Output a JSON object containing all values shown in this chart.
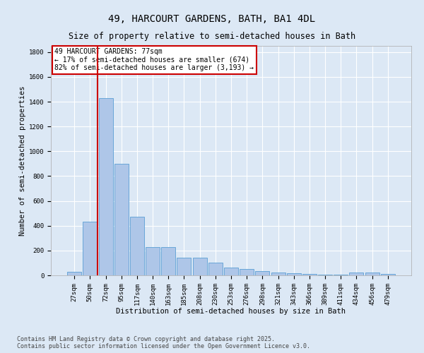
{
  "title": "49, HARCOURT GARDENS, BATH, BA1 4DL",
  "subtitle": "Size of property relative to semi-detached houses in Bath",
  "xlabel": "Distribution of semi-detached houses by size in Bath",
  "ylabel": "Number of semi-detached properties",
  "categories": [
    "27sqm",
    "50sqm",
    "72sqm",
    "95sqm",
    "117sqm",
    "140sqm",
    "163sqm",
    "185sqm",
    "208sqm",
    "230sqm",
    "253sqm",
    "276sqm",
    "298sqm",
    "321sqm",
    "343sqm",
    "366sqm",
    "389sqm",
    "411sqm",
    "434sqm",
    "456sqm",
    "479sqm"
  ],
  "values": [
    30,
    430,
    1430,
    900,
    470,
    225,
    225,
    140,
    140,
    100,
    65,
    50,
    35,
    25,
    15,
    10,
    7,
    5,
    25,
    20,
    10
  ],
  "bar_color": "#aec6e8",
  "bar_edge_color": "#5a9fd4",
  "background_color": "#dce8f5",
  "grid_color": "#ffffff",
  "vline_color": "#cc0000",
  "annotation_title": "49 HARCOURT GARDENS: 77sqm",
  "annotation_line1": "← 17% of semi-detached houses are smaller (674)",
  "annotation_line2": "82% of semi-detached houses are larger (3,193) →",
  "annotation_box_color": "#ffffff",
  "annotation_box_edge": "#cc0000",
  "ylim": [
    0,
    1850
  ],
  "yticks": [
    0,
    200,
    400,
    600,
    800,
    1000,
    1200,
    1400,
    1600,
    1800
  ],
  "footer1": "Contains HM Land Registry data © Crown copyright and database right 2025.",
  "footer2": "Contains public sector information licensed under the Open Government Licence v3.0.",
  "title_fontsize": 10,
  "subtitle_fontsize": 8.5,
  "axis_label_fontsize": 7.5,
  "tick_fontsize": 6.5,
  "annotation_fontsize": 7,
  "footer_fontsize": 6
}
